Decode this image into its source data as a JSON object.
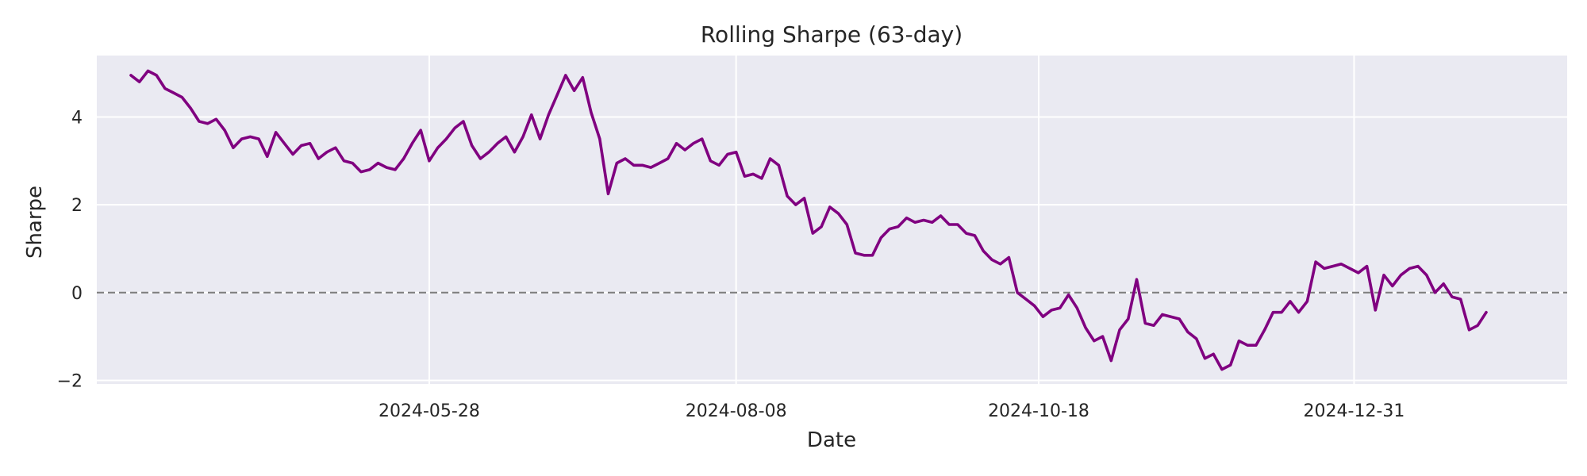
{
  "chart_data": {
    "type": "line",
    "title": "Rolling Sharpe (63-day)",
    "xlabel": "Date",
    "ylabel": "Sharpe",
    "x_ticks": [
      "2024-05-28",
      "2024-08-08",
      "2024-10-18",
      "2024-12-31"
    ],
    "y_ticks": [
      -2,
      0,
      2,
      4
    ],
    "ylim": [
      -2.1,
      5.4
    ],
    "grid": true,
    "legend": "none",
    "reference_line": {
      "y": 0,
      "style": "dashed",
      "color": "#808080"
    },
    "colors": {
      "background": "#eaeaf2",
      "grid": "#ffffff",
      "line": "#800080"
    },
    "series": [
      {
        "x": [
          "2024-03-19",
          "2024-03-21",
          "2024-03-23",
          "2024-03-25",
          "2024-03-27",
          "2024-03-29",
          "2024-03-31",
          "2024-04-02",
          "2024-04-04",
          "2024-04-06",
          "2024-04-08",
          "2024-04-10",
          "2024-04-12",
          "2024-04-14",
          "2024-04-16",
          "2024-04-18",
          "2024-04-20",
          "2024-04-22",
          "2024-04-24",
          "2024-04-26",
          "2024-04-28",
          "2024-04-30",
          "2024-05-02",
          "2024-05-04",
          "2024-05-06",
          "2024-05-08",
          "2024-05-10",
          "2024-05-12",
          "2024-05-14",
          "2024-05-16",
          "2024-05-18",
          "2024-05-20",
          "2024-05-22",
          "2024-05-24",
          "2024-05-26",
          "2024-05-28",
          "2024-05-30",
          "2024-06-01",
          "2024-06-03",
          "2024-06-05",
          "2024-06-07",
          "2024-06-09",
          "2024-06-11",
          "2024-06-13",
          "2024-06-15",
          "2024-06-17",
          "2024-06-19",
          "2024-06-21",
          "2024-06-23",
          "2024-06-25",
          "2024-06-27",
          "2024-06-29",
          "2024-07-01",
          "2024-07-03",
          "2024-07-05",
          "2024-07-07",
          "2024-07-09",
          "2024-07-11",
          "2024-07-13",
          "2024-07-15",
          "2024-07-17",
          "2024-07-19",
          "2024-07-21",
          "2024-07-23",
          "2024-07-25",
          "2024-07-27",
          "2024-07-29",
          "2024-07-31",
          "2024-08-02",
          "2024-08-04",
          "2024-08-06",
          "2024-08-08",
          "2024-08-10",
          "2024-08-12",
          "2024-08-14",
          "2024-08-16",
          "2024-08-18",
          "2024-08-20",
          "2024-08-22",
          "2024-08-24",
          "2024-08-26",
          "2024-08-28",
          "2024-08-30",
          "2024-09-01",
          "2024-09-03",
          "2024-09-05",
          "2024-09-07",
          "2024-09-09",
          "2024-09-11",
          "2024-09-13",
          "2024-09-15",
          "2024-09-17",
          "2024-09-19",
          "2024-09-21",
          "2024-09-23",
          "2024-09-25",
          "2024-09-27",
          "2024-09-29",
          "2024-10-01",
          "2024-10-03",
          "2024-10-05",
          "2024-10-07",
          "2024-10-09",
          "2024-10-11",
          "2024-10-13",
          "2024-10-15",
          "2024-10-17",
          "2024-10-19",
          "2024-10-21",
          "2024-10-23",
          "2024-10-25",
          "2024-10-27",
          "2024-10-29",
          "2024-10-31",
          "2024-11-02",
          "2024-11-04",
          "2024-11-06",
          "2024-11-08",
          "2024-11-10",
          "2024-11-12",
          "2024-11-14",
          "2024-11-16",
          "2024-11-18",
          "2024-11-20",
          "2024-11-22",
          "2024-11-24",
          "2024-11-26",
          "2024-11-28",
          "2024-11-30",
          "2024-12-02",
          "2024-12-04",
          "2024-12-06",
          "2024-12-08",
          "2024-12-10",
          "2024-12-12",
          "2024-12-14",
          "2024-12-16",
          "2024-12-18",
          "2024-12-20",
          "2024-12-22",
          "2024-12-24",
          "2024-12-26",
          "2024-12-28",
          "2024-12-30",
          "2025-01-01",
          "2025-01-03",
          "2025-01-05",
          "2025-01-07",
          "2025-01-09",
          "2025-01-11",
          "2025-01-13",
          "2025-01-15",
          "2025-01-17",
          "2025-01-19",
          "2025-01-21",
          "2025-01-23",
          "2025-01-25",
          "2025-01-27",
          "2025-01-29",
          "2025-01-31"
        ],
        "values": [
          4.95,
          4.8,
          5.05,
          4.95,
          4.65,
          4.55,
          4.45,
          4.2,
          3.9,
          3.85,
          3.95,
          3.7,
          3.3,
          3.5,
          3.55,
          3.5,
          3.1,
          3.65,
          3.4,
          3.15,
          3.35,
          3.4,
          3.05,
          3.2,
          3.3,
          3.0,
          2.95,
          2.75,
          2.8,
          2.95,
          2.85,
          2.8,
          3.05,
          3.4,
          3.7,
          3.0,
          3.3,
          3.5,
          3.75,
          3.9,
          3.35,
          3.05,
          3.2,
          3.4,
          3.55,
          3.2,
          3.55,
          4.05,
          3.5,
          4.05,
          4.5,
          4.95,
          4.6,
          4.9,
          4.1,
          3.5,
          2.25,
          2.95,
          3.05,
          2.9,
          2.9,
          2.85,
          2.95,
          3.05,
          3.4,
          3.25,
          3.4,
          3.5,
          3.0,
          2.9,
          3.15,
          3.2,
          2.65,
          2.7,
          2.6,
          3.05,
          2.9,
          2.2,
          2.0,
          2.15,
          1.35,
          1.5,
          1.95,
          1.8,
          1.55,
          0.9,
          0.85,
          0.85,
          1.25,
          1.45,
          1.5,
          1.7,
          1.6,
          1.65,
          1.6,
          1.75,
          1.55,
          1.55,
          1.35,
          1.3,
          0.95,
          0.75,
          0.65,
          0.8,
          0.0,
          -0.15,
          -0.3,
          -0.55,
          -0.4,
          -0.35,
          -0.05,
          -0.35,
          -0.8,
          -1.1,
          -1.0,
          -1.55,
          -0.85,
          -0.6,
          0.3,
          -0.7,
          -0.75,
          -0.5,
          -0.55,
          -0.6,
          -0.9,
          -1.05,
          -1.5,
          -1.4,
          -1.75,
          -1.65,
          -1.1,
          -1.2,
          -1.2,
          -0.85,
          -0.45,
          -0.45,
          -0.2,
          -0.45,
          -0.2,
          0.7,
          0.55,
          0.6,
          0.65,
          0.55,
          0.45,
          0.6,
          -0.4,
          0.4,
          0.15,
          0.4,
          0.55,
          0.6,
          0.4,
          0.0,
          0.2,
          -0.1,
          -0.15,
          -0.85,
          -0.75,
          -0.45
        ]
      }
    ]
  }
}
